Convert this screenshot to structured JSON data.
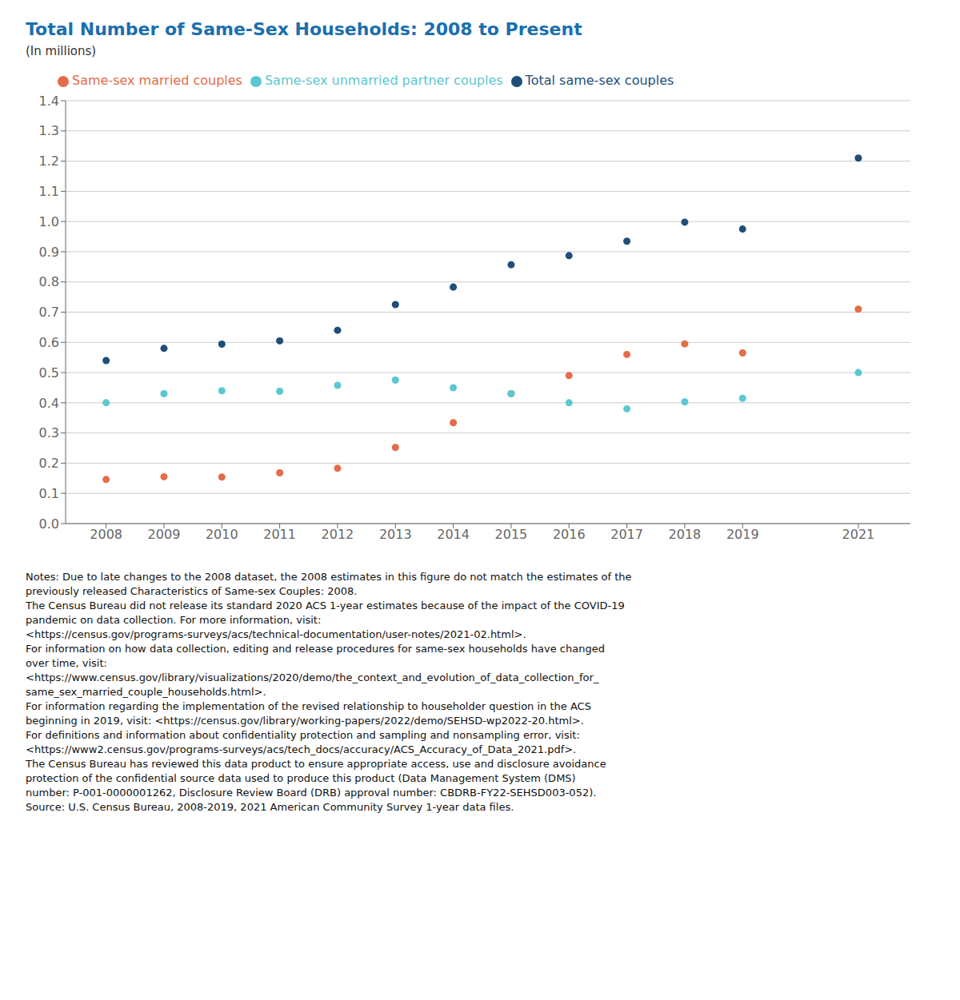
{
  "chart_data": {
    "type": "scatter",
    "title": "Total Number of Same-Sex Households: 2008 to Present",
    "subtitle": "(In millions)",
    "x": [
      2008,
      2009,
      2010,
      2011,
      2012,
      2013,
      2014,
      2015,
      2016,
      2017,
      2018,
      2019,
      2021
    ],
    "series": [
      {
        "name": "Total same-sex couples",
        "color": "#1f4e79",
        "values": [
          0.54,
          0.58,
          0.594,
          0.605,
          0.64,
          0.725,
          0.783,
          0.857,
          0.887,
          0.935,
          0.998,
          0.975,
          1.21
        ]
      },
      {
        "name": "Same-sex married couples",
        "color": "#e36c4a",
        "values": [
          0.146,
          0.155,
          0.154,
          0.168,
          0.183,
          0.252,
          0.334,
          0.43,
          0.49,
          0.56,
          0.595,
          0.565,
          0.71
        ]
      },
      {
        "name": "Same-sex unmarried partner couples",
        "color": "#5bc8d0",
        "values": [
          0.4,
          0.43,
          0.44,
          0.438,
          0.458,
          0.475,
          0.45,
          0.43,
          0.4,
          0.38,
          0.403,
          0.415,
          0.5
        ]
      }
    ],
    "xlim": [
      2007.3,
      2021.9
    ],
    "xticks": [
      2008,
      2009,
      2010,
      2011,
      2012,
      2013,
      2014,
      2015,
      2016,
      2017,
      2018,
      2019,
      2021
    ],
    "ylim": [
      0,
      1.4
    ],
    "yticks": [
      {
        "value": 0,
        "label": "0.0"
      },
      0.1,
      0.2,
      0.3,
      0.4,
      0.5,
      0.6,
      0.7,
      0.8,
      0.9,
      {
        "value": 1.0,
        "label": "1.0"
      },
      1.1,
      1.2,
      1.3,
      1.4
    ],
    "grid": "y",
    "legend": "upper left",
    "marker": "circle",
    "notes": [
      "Notes: Due to late changes to the 2008 dataset, the 2008 estimates in this figure do not match the estimates of the",
      "previously released Characteristics of Same-sex Couples: 2008.",
      "The Census Bureau did not release its standard 2020 ACS 1-year estimates because of the impact of the COVID-19",
      "pandemic on data collection. For more information, visit:",
      "<https://census.gov/programs-surveys/acs/technical-documentation/user-notes/2021-02.html>.",
      "For information on how data collection, editing and release procedures for same-sex households have changed",
      "over time, visit:",
      "<https://www.census.gov/library/visualizations/2020/demo/the_context_and_evolution_of_data_collection_for_",
      "same_sex_married_couple_households.html>.",
      "For information regarding the implementation of the revised relationship to householder question in the ACS",
      "beginning in 2019, visit: <https://census.gov/library/working-papers/2022/demo/SEHSD-wp2022-20.html>.",
      "For definitions and information about confidentiality protection and sampling and nonsampling error, visit:",
      "<https://www2.census.gov/programs-surveys/acs/tech_docs/accuracy/ACS_Accuracy_of_Data_2021.pdf>.",
      "The Census Bureau has reviewed this data product to ensure appropriate access, use and disclosure avoidance",
      "protection of the confidential source data used to produce this product (Data Management System (DMS)",
      "number: P-001-0000001262, Disclosure Review Board (DRB) approval number: CBDRB-FY22-SEHSD003-052).",
      "Source: U.S. Census Bureau, 2008-2019, 2021 American Community Survey 1-year data files."
    ]
  }
}
